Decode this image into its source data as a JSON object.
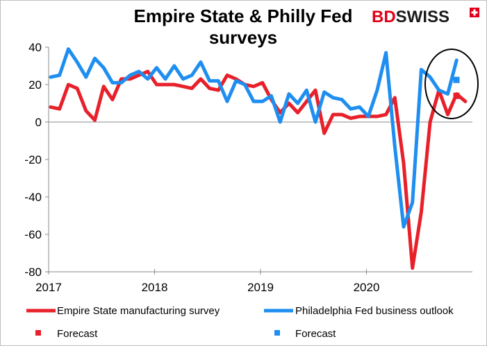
{
  "chart_data": {
    "type": "line",
    "title_lines": [
      "Empire State & Philly Fed",
      "surveys"
    ],
    "brand": {
      "prefix": "BD",
      "name": "SWISS",
      "prefix_color": "#e1001a",
      "name_color": "#1a1a1a",
      "icon": "swiss-cross-icon"
    },
    "x_tick_labels": [
      "2017",
      "2018",
      "2019",
      "2020"
    ],
    "x_ticks": [
      2017,
      2018,
      2019,
      2020
    ],
    "xlim": [
      2017,
      2021
    ],
    "ylim": [
      -80,
      40
    ],
    "y_ticks": [
      -80,
      -60,
      -40,
      -20,
      0,
      20,
      40
    ],
    "grid": false,
    "legend_position": "bottom",
    "annotation": "ellipse circling latest values and forecasts",
    "series": [
      {
        "name": "Empire State manufacturing survey",
        "color": "#e8202a",
        "values": [
          8,
          7,
          20,
          18,
          6,
          1,
          19,
          12,
          23,
          23,
          25,
          27,
          20,
          20,
          20,
          19,
          18,
          23,
          18,
          17,
          25,
          23,
          20,
          19,
          21,
          12,
          5,
          10,
          5,
          11,
          17,
          -6,
          4,
          4,
          2,
          3,
          3,
          3,
          4,
          13,
          -22,
          -78,
          -48,
          0,
          17,
          4,
          15,
          11
        ]
      },
      {
        "name": "Philadelphia Fed business outlook",
        "color": "#1e8ef0",
        "values": [
          24,
          25,
          39,
          32,
          24,
          34,
          29,
          21,
          21,
          25,
          27,
          23,
          29,
          23,
          30,
          23,
          25,
          32,
          22,
          22,
          11,
          22,
          20,
          11,
          11,
          14,
          0,
          15,
          10,
          17,
          0,
          16,
          13,
          12,
          7,
          8,
          3,
          17,
          37,
          -13,
          -56,
          -43,
          28,
          24,
          17,
          15,
          33
        ]
      }
    ],
    "forecasts": [
      {
        "name": "Forecast",
        "series": "Empire State manufacturing survey",
        "value": 14,
        "color": "#e8202a"
      },
      {
        "name": "Forecast",
        "series": "Philadelphia Fed business outlook",
        "value": 22.5,
        "color": "#1e8ef0"
      }
    ]
  }
}
